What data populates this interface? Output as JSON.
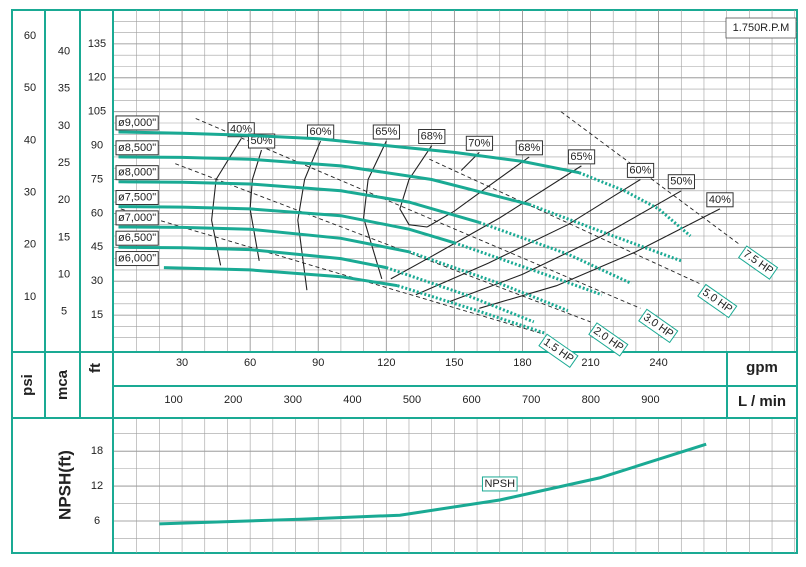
{
  "chart_data": [
    {
      "type": "line",
      "speed_label": "1.750R.P.M",
      "xlabel": "gpm",
      "xlim": [
        0,
        301
      ],
      "xticks": [
        30,
        60,
        90,
        120,
        150,
        180,
        210,
        240
      ],
      "x2label": "L / min",
      "x2lim": [
        0,
        1146
      ],
      "x2ticks": [
        100,
        200,
        300,
        400,
        500,
        600,
        700,
        800,
        900
      ],
      "ylabel": "ft",
      "ylim": [
        0,
        150
      ],
      "yticks": [
        15,
        30,
        45,
        60,
        75,
        90,
        105,
        120,
        135
      ],
      "y2label": "psi",
      "y2lim": [
        0,
        65
      ],
      "y2ticks": [
        10,
        20,
        30,
        40,
        50,
        60
      ],
      "y3label": "mca",
      "y3lim": [
        0,
        45.6
      ],
      "y3ticks": [
        5,
        10,
        15,
        20,
        25,
        30,
        35,
        40
      ],
      "grid": true,
      "series": [
        {
          "name": "ø9,000\"",
          "color": "#1aaa94",
          "x": [
            2,
            30,
            60,
            90,
            120,
            150,
            180,
            205
          ],
          "values": [
            96,
            95.5,
            94.5,
            93,
            90,
            87,
            83,
            78
          ],
          "ext_x": [
            205,
            225,
            240,
            254
          ],
          "ext_values": [
            78,
            70,
            62,
            50
          ]
        },
        {
          "name": "ø8,500\"",
          "color": "#1aaa94",
          "x": [
            2,
            30,
            60,
            100,
            140,
            183
          ],
          "values": [
            85,
            84.8,
            84,
            81,
            75,
            64
          ],
          "ext_x": [
            183,
            220,
            250
          ],
          "ext_values": [
            64,
            50,
            39
          ]
        },
        {
          "name": "ø8,000\"",
          "color": "#1aaa94",
          "x": [
            2,
            30,
            60,
            100,
            130,
            161
          ],
          "values": [
            74,
            73.8,
            73,
            70,
            65,
            56
          ],
          "ext_x": [
            161,
            200,
            228
          ],
          "ext_values": [
            56,
            42,
            29
          ]
        },
        {
          "name": "ø7,500\"",
          "color": "#1aaa94",
          "x": [
            2,
            30,
            60,
            100,
            130,
            150
          ],
          "values": [
            63,
            62.8,
            62,
            59,
            53,
            47
          ],
          "ext_x": [
            150,
            190,
            215
          ],
          "ext_values": [
            47,
            33,
            24
          ]
        },
        {
          "name": "ø7,000\"",
          "color": "#1aaa94",
          "x": [
            2,
            30,
            60,
            100,
            130
          ],
          "values": [
            54,
            53.8,
            53,
            49,
            43
          ],
          "ext_x": [
            130,
            170,
            200
          ],
          "ext_values": [
            43,
            29,
            17
          ]
        },
        {
          "name": "ø6,500\"",
          "color": "#1aaa94",
          "x": [
            2,
            30,
            60,
            100,
            120
          ],
          "values": [
            45,
            44.8,
            44,
            40,
            36
          ],
          "ext_x": [
            120,
            155,
            185
          ],
          "ext_values": [
            36,
            24,
            12
          ]
        },
        {
          "name": "ø6,000\"",
          "color": "#1aaa94",
          "x": [
            22,
            60,
            100,
            125
          ],
          "values": [
            36,
            35,
            32,
            28
          ],
          "ext_x": [
            125,
            160,
            190
          ],
          "ext_values": [
            28,
            17,
            7
          ]
        }
      ],
      "efficiency": [
        {
          "label": "40%",
          "x": [
            56,
            45,
            43,
            47
          ],
          "values": [
            93,
            75,
            57,
            37
          ]
        },
        {
          "label": "50%",
          "x": [
            65,
            61,
            60,
            64
          ],
          "values": [
            88,
            75,
            62,
            39
          ]
        },
        {
          "label": "60%",
          "x": [
            91,
            84,
            81,
            85
          ],
          "values": [
            92,
            75,
            57,
            26
          ]
        },
        {
          "label": "65%",
          "x": [
            120,
            112,
            110,
            118
          ],
          "values": [
            92,
            75,
            58,
            31
          ]
        },
        {
          "label": "68%",
          "x": [
            140,
            130,
            126,
            130,
            138
          ],
          "values": [
            90,
            75,
            62,
            55,
            54
          ]
        },
        {
          "label": "70%",
          "x": [
            161,
            153
          ],
          "values": [
            87,
            79
          ]
        },
        {
          "label": "68%",
          "x": [
            183,
            165,
            150,
            138
          ],
          "values": [
            85,
            72,
            61,
            54
          ]
        },
        {
          "label": "65%",
          "x": [
            206,
            170,
            140,
            122
          ],
          "values": [
            81,
            58,
            41,
            31
          ]
        },
        {
          "label": "60%",
          "x": [
            232,
            200,
            165,
            133
          ],
          "values": [
            75,
            55,
            38,
            24
          ]
        },
        {
          "label": "50%",
          "x": [
            250,
            215,
            180,
            148
          ],
          "values": [
            70,
            50,
            33,
            21
          ]
        },
        {
          "label": "40%",
          "x": [
            267,
            230,
            195,
            161
          ],
          "values": [
            62,
            43,
            28,
            18
          ]
        }
      ],
      "power_lines": [
        {
          "label": "7.5 HP",
          "x": [
            197,
            276
          ],
          "values": [
            105,
            46
          ]
        },
        {
          "label": "5.0 HP",
          "x": [
            139,
            258
          ],
          "values": [
            84,
            29
          ]
        },
        {
          "label": "3.0 HP",
          "x": [
            36,
            232
          ],
          "values": [
            102,
            18
          ]
        },
        {
          "label": "2.0 HP",
          "x": [
            27,
            210
          ],
          "values": [
            82,
            12
          ]
        },
        {
          "label": "1.5 HP",
          "x": [
            3,
            188
          ],
          "values": [
            62,
            7
          ]
        }
      ]
    },
    {
      "type": "line",
      "ylabel": "NPSH(ft)",
      "xlim": [
        0,
        301
      ],
      "ylim": [
        0.5,
        23.7
      ],
      "yticks": [
        6,
        12,
        18
      ],
      "grid": true,
      "series": [
        {
          "name": "NPSH",
          "color": "#1aaa94",
          "x": [
            20,
            82,
            126,
            170,
            214,
            261
          ],
          "values": [
            5.5,
            6.3,
            7.0,
            9.6,
            13.4,
            19.2
          ]
        }
      ]
    }
  ]
}
